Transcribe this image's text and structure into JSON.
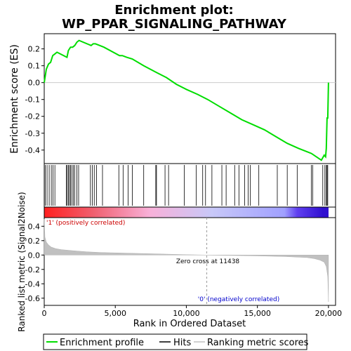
{
  "title_line1": "Enrichment plot:",
  "title_line2": "WP_PPAR_SIGNALING_PATHWAY",
  "top_panel": {
    "ylabel": "Enrichment score (ES)",
    "ylim": [
      -0.48,
      0.29
    ],
    "yticks": [
      0.2,
      0.1,
      0.0,
      -0.1,
      -0.2,
      -0.3,
      -0.4
    ],
    "ytick_labels": [
      "0.2",
      "0.1",
      "0.0",
      "-0.1",
      "-0.2",
      "-0.3",
      "-0.4"
    ]
  },
  "bottom_panel": {
    "ylabel": "Ranked list metric (Signal2Noise)",
    "ylim": [
      -0.7,
      0.52
    ],
    "yticks": [
      0.4,
      0.2,
      0.0,
      -0.2,
      -0.4,
      -0.6
    ],
    "ytick_labels": [
      "0.4",
      "0.2",
      "0.0",
      "-0.2",
      "-0.4",
      "-0.6"
    ],
    "zero_cross_label": "Zero cross at 11438",
    "zero_cross": 11438,
    "pos_label": "'1' (positively correlated)",
    "neg_label": "'0' (negatively correlated)"
  },
  "xaxis": {
    "xlabel": "Rank in Ordered Dataset",
    "xlim": [
      0,
      20500
    ],
    "xticks": [
      0,
      5000,
      10000,
      15000,
      20000
    ],
    "xtick_labels": [
      "0",
      "5,000",
      "10,000",
      "15,000",
      "20,000"
    ]
  },
  "legend": {
    "items": [
      "Enrichment profile",
      "Hits",
      "Ranking metric scores"
    ]
  },
  "colors": {
    "enrichment": "#00dd00",
    "hits": "#000000",
    "metric": "#c0c0c0"
  },
  "chart_data": {
    "type": "line",
    "enrichment_profile": {
      "x": [
        0,
        150,
        300,
        450,
        600,
        750,
        900,
        1600,
        1700,
        1850,
        2000,
        2150,
        2300,
        2450,
        3300,
        3450,
        3600,
        3750,
        4200,
        5300,
        5500,
        5800,
        6200,
        7000,
        7900,
        8600,
        9300,
        10000,
        10800,
        11500,
        12300,
        13100,
        13900,
        14700,
        15500,
        16300,
        17100,
        17900,
        18500,
        18800,
        19500,
        19700,
        19800,
        19850,
        19900,
        19950,
        20000
      ],
      "y": [
        0.0,
        0.08,
        0.11,
        0.12,
        0.16,
        0.17,
        0.18,
        0.15,
        0.19,
        0.21,
        0.21,
        0.22,
        0.24,
        0.25,
        0.22,
        0.23,
        0.23,
        0.225,
        0.21,
        0.16,
        0.16,
        0.15,
        0.14,
        0.1,
        0.06,
        0.03,
        -0.01,
        -0.04,
        -0.07,
        -0.1,
        -0.14,
        -0.18,
        -0.22,
        -0.25,
        -0.28,
        -0.32,
        -0.36,
        -0.39,
        -0.41,
        -0.42,
        -0.46,
        -0.43,
        -0.44,
        -0.39,
        -0.21,
        -0.21,
        0.0
      ]
    },
    "hits": [
      80,
      200,
      350,
      500,
      620,
      750,
      1550,
      1620,
      1700,
      1780,
      1850,
      1950,
      2050,
      2150,
      2300,
      2420,
      3250,
      3380,
      3520,
      3680,
      4100,
      5250,
      5550,
      5900,
      6200,
      7000,
      7850,
      7900,
      8500,
      8750,
      9850,
      10700,
      11150,
      11350,
      11800,
      12500,
      12800,
      13400,
      13700,
      14100,
      14350,
      14500,
      15100,
      16400,
      17100,
      17800,
      18800,
      18900,
      19600,
      19750,
      19850,
      19900,
      19950
    ],
    "ranking_metric": {
      "x": [
        0,
        50,
        150,
        300,
        500,
        800,
        1200,
        2000,
        3000,
        4000,
        6000,
        8000,
        10000,
        11438,
        13000,
        15000,
        17000,
        18500,
        19000,
        19400,
        19700,
        19850,
        19950,
        20000
      ],
      "y": [
        0.5,
        0.25,
        0.18,
        0.14,
        0.11,
        0.09,
        0.075,
        0.06,
        0.045,
        0.035,
        0.025,
        0.015,
        0.005,
        0.0,
        -0.005,
        -0.012,
        -0.022,
        -0.035,
        -0.05,
        -0.07,
        -0.1,
        -0.16,
        -0.3,
        -0.65
      ]
    },
    "color_bar": {
      "stops": [
        {
          "x": 0,
          "color": "#ff2020"
        },
        {
          "x": 3500,
          "color": "#f06070"
        },
        {
          "x": 7400,
          "color": "#f8b0d8"
        },
        {
          "x": 11800,
          "color": "#c8c8f8"
        },
        {
          "x": 16900,
          "color": "#a0a0ff"
        },
        {
          "x": 17800,
          "color": "#6040f0"
        },
        {
          "x": 19600,
          "color": "#3010d0"
        }
      ]
    }
  }
}
